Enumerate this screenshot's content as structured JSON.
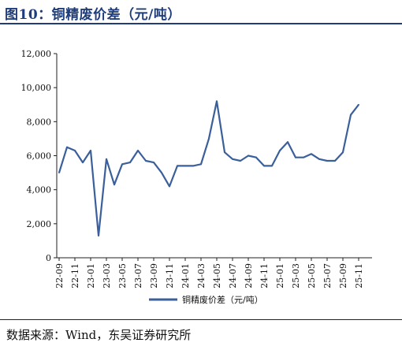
{
  "figure_title": "图10：铜精废价差（元/吨）",
  "source_note": "数据来源：Wind，东吴证券研究所",
  "colors": {
    "series": "#3a5f9a",
    "title": "#1f3d7a",
    "axis": "#222222"
  },
  "chart_data": {
    "type": "line",
    "title": "",
    "xlabel": "",
    "ylabel": "",
    "ylim": [
      0,
      12000
    ],
    "yticks": [
      0,
      2000,
      4000,
      6000,
      8000,
      10000,
      12000
    ],
    "ytick_labels": [
      "0",
      "2,000",
      "4,000",
      "6,000",
      "8,000",
      "10,000",
      "12,000"
    ],
    "xtick_labels": [
      "22-09",
      "22-11",
      "23-01",
      "23-03",
      "23-05",
      "23-07",
      "23-09",
      "23-11",
      "24-01",
      "24-03",
      "24-05",
      "24-07",
      "24-09",
      "24-11",
      "25-01",
      "25-03",
      "25-05",
      "25-07",
      "25-09",
      "25-11"
    ],
    "grid": false,
    "legend": "bottom-center",
    "series": [
      {
        "name": "铜精废价差（元/吨）",
        "x": [
          "22-09",
          "22-10",
          "22-11",
          "22-12",
          "23-01",
          "23-02",
          "23-03",
          "23-04",
          "23-05",
          "23-06",
          "23-07",
          "23-08",
          "23-09",
          "23-10",
          "23-11",
          "23-12",
          "24-01",
          "24-02",
          "24-03",
          "24-04",
          "24-05",
          "24-06",
          "24-07",
          "24-08",
          "24-09",
          "24-10",
          "24-11",
          "24-12",
          "25-01",
          "25-02",
          "25-03",
          "25-04",
          "25-05",
          "25-06",
          "25-07",
          "25-08",
          "25-09",
          "25-10",
          "25-11"
        ],
        "values": [
          5000,
          6500,
          6300,
          5600,
          6300,
          1300,
          5800,
          4300,
          5500,
          5600,
          6300,
          5700,
          5600,
          5000,
          4200,
          5400,
          5400,
          5400,
          5500,
          7000,
          9200,
          6200,
          5800,
          5700,
          6000,
          5900,
          5400,
          5400,
          6300,
          6800,
          5900,
          5900,
          6100,
          5800,
          5700,
          5700,
          6200,
          8400,
          9000
        ]
      }
    ]
  }
}
